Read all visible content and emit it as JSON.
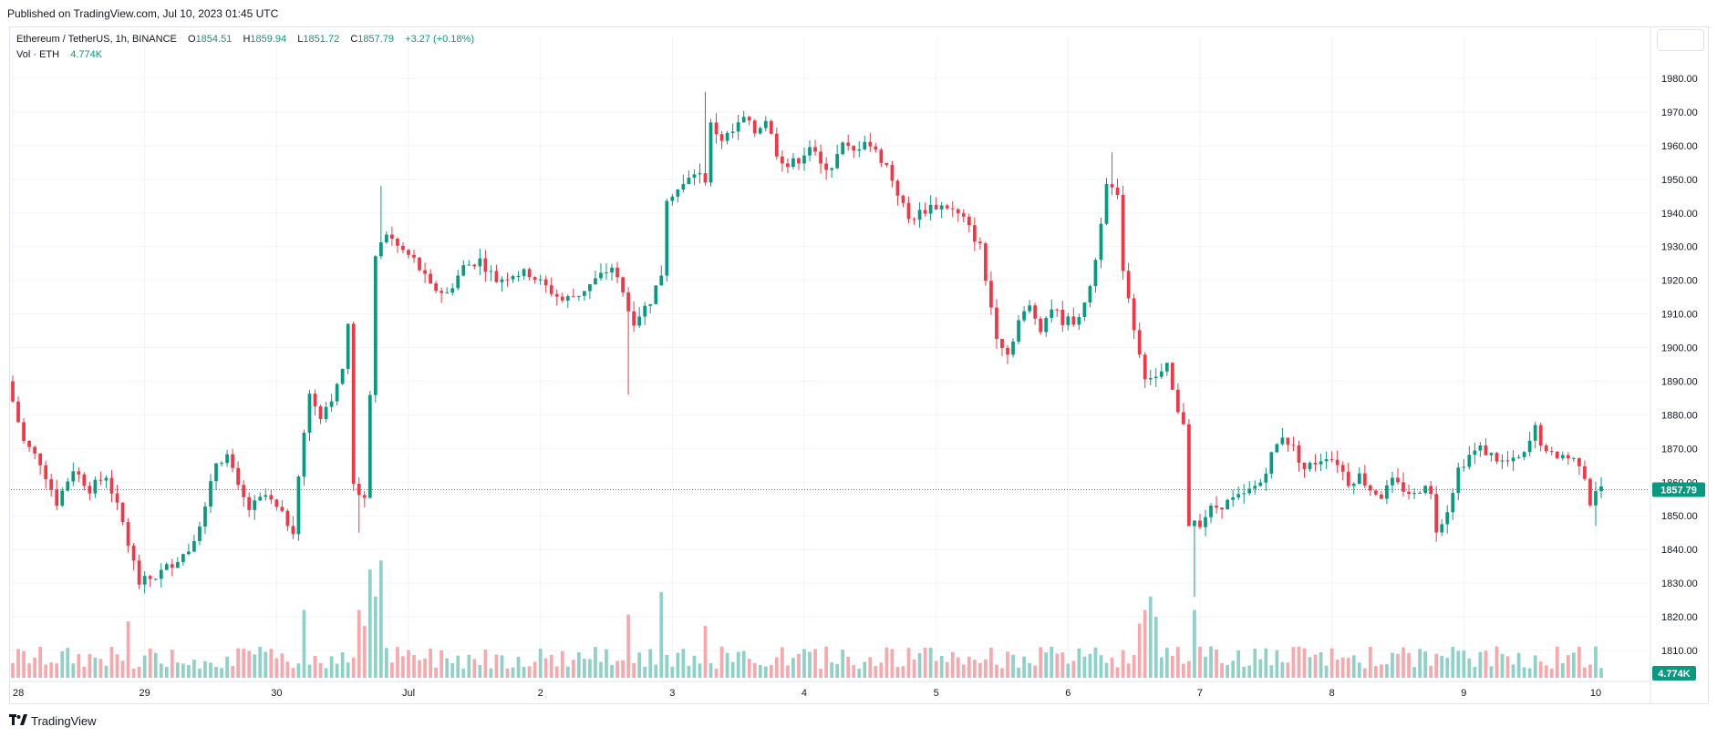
{
  "header": {
    "published": "Published on TradingView.com, Jul 10, 2023 01:45 UTC"
  },
  "legend": {
    "symbol": "Ethereum / TetherUS, 1h, BINANCE",
    "open_label": "O",
    "open": "1854.51",
    "high_label": "H",
    "high": "1859.94",
    "low_label": "L",
    "low": "1851.72",
    "close_label": "C",
    "close": "1857.79",
    "change": "+3.27 (+0.18%)",
    "volume_label": "Vol · ETH",
    "volume": "4.774K"
  },
  "price_badge": "1857.79",
  "volume_badge": "4.774K",
  "footer": {
    "brand": "TradingView",
    "logo": "tradingview-logo-icon"
  },
  "colors": {
    "up": "#089981",
    "down": "#f23645",
    "vol_up": "#8fd1c6",
    "vol_down": "#f7a8ad",
    "grid": "#f0f3fa",
    "axis_text": "#131722"
  },
  "chart_data": {
    "type": "candlestick",
    "interval": "1h",
    "ylim": [
      1810,
      1980
    ],
    "y_ticks": [
      1810,
      1820,
      1830,
      1840,
      1850,
      1860,
      1870,
      1880,
      1890,
      1900,
      1910,
      1920,
      1930,
      1940,
      1950,
      1960,
      1970,
      1980
    ],
    "y_tick_labels": [
      "1810.00",
      "1820.00",
      "1830.00",
      "1840.00",
      "1850.00",
      "1860.00",
      "1870.00",
      "1880.00",
      "1890.00",
      "1900.00",
      "1910.00",
      "1920.00",
      "1930.00",
      "1940.00",
      "1950.00",
      "1960.00",
      "1970.00",
      "1980.00"
    ],
    "x_tick_labels": [
      {
        "label": "28",
        "hour": 0
      },
      {
        "label": "29",
        "hour": 24
      },
      {
        "label": "30",
        "hour": 48
      },
      {
        "label": "Jul",
        "hour": 72
      },
      {
        "label": "2",
        "hour": 96
      },
      {
        "label": "3",
        "hour": 120
      },
      {
        "label": "4",
        "hour": 144
      },
      {
        "label": "5",
        "hour": 168
      },
      {
        "label": "6",
        "hour": 192
      },
      {
        "label": "7",
        "hour": 216
      },
      {
        "label": "8",
        "hour": 240
      },
      {
        "label": "9",
        "hour": 264
      },
      {
        "label": "10",
        "hour": 288
      }
    ],
    "last_price": 1857.79,
    "price_path": [
      [
        0,
        1890
      ],
      [
        3,
        1872
      ],
      [
        6,
        1866
      ],
      [
        9,
        1854
      ],
      [
        12,
        1864
      ],
      [
        15,
        1858
      ],
      [
        18,
        1862
      ],
      [
        21,
        1848
      ],
      [
        22,
        1842
      ],
      [
        24,
        1830
      ],
      [
        27,
        1832
      ],
      [
        30,
        1836
      ],
      [
        33,
        1840
      ],
      [
        36,
        1852
      ],
      [
        38,
        1866
      ],
      [
        40,
        1868
      ],
      [
        42,
        1858
      ],
      [
        44,
        1852
      ],
      [
        47,
        1856
      ],
      [
        50,
        1850
      ],
      [
        52,
        1846
      ],
      [
        53,
        1862
      ],
      [
        55,
        1886
      ],
      [
        57,
        1880
      ],
      [
        60,
        1888
      ],
      [
        61,
        1894
      ],
      [
        62,
        1906
      ],
      [
        63,
        1860
      ],
      [
        65,
        1854
      ],
      [
        66,
        1885
      ],
      [
        67,
        1928
      ],
      [
        69,
        1934
      ],
      [
        71,
        1930
      ],
      [
        74,
        1926
      ],
      [
        77,
        1918
      ],
      [
        80,
        1916
      ],
      [
        83,
        1924
      ],
      [
        86,
        1926
      ],
      [
        89,
        1920
      ],
      [
        92,
        1922
      ],
      [
        95,
        1922
      ],
      [
        98,
        1918
      ],
      [
        101,
        1914
      ],
      [
        104,
        1916
      ],
      [
        107,
        1920
      ],
      [
        110,
        1924
      ],
      [
        112,
        1916
      ],
      [
        114,
        1908
      ],
      [
        117,
        1914
      ],
      [
        119,
        1922
      ],
      [
        120,
        1945
      ],
      [
        123,
        1948
      ],
      [
        125,
        1952
      ],
      [
        127,
        1950
      ],
      [
        128,
        1966
      ],
      [
        130,
        1962
      ],
      [
        132,
        1964
      ],
      [
        134,
        1968
      ],
      [
        136,
        1964
      ],
      [
        138,
        1968
      ],
      [
        140,
        1958
      ],
      [
        142,
        1954
      ],
      [
        144,
        1956
      ],
      [
        146,
        1960
      ],
      [
        148,
        1954
      ],
      [
        150,
        1954
      ],
      [
        152,
        1960
      ],
      [
        154,
        1958
      ],
      [
        156,
        1962
      ],
      [
        158,
        1958
      ],
      [
        160,
        1954
      ],
      [
        162,
        1946
      ],
      [
        164,
        1938
      ],
      [
        166,
        1940
      ],
      [
        168,
        1942
      ],
      [
        171,
        1942
      ],
      [
        174,
        1938
      ],
      [
        177,
        1930
      ],
      [
        178,
        1920
      ],
      [
        180,
        1904
      ],
      [
        182,
        1898
      ],
      [
        184,
        1908
      ],
      [
        186,
        1912
      ],
      [
        188,
        1906
      ],
      [
        190,
        1912
      ],
      [
        192,
        1908
      ],
      [
        194,
        1908
      ],
      [
        196,
        1912
      ],
      [
        198,
        1926
      ],
      [
        200,
        1950
      ],
      [
        202,
        1944
      ],
      [
        203,
        1924
      ],
      [
        205,
        1906
      ],
      [
        207,
        1892
      ],
      [
        209,
        1890
      ],
      [
        211,
        1894
      ],
      [
        213,
        1880
      ],
      [
        214,
        1878
      ],
      [
        215,
        1848
      ],
      [
        217,
        1848
      ],
      [
        219,
        1852
      ],
      [
        222,
        1854
      ],
      [
        225,
        1856
      ],
      [
        228,
        1860
      ],
      [
        230,
        1868
      ],
      [
        232,
        1874
      ],
      [
        234,
        1870
      ],
      [
        236,
        1864
      ],
      [
        238,
        1866
      ],
      [
        240,
        1868
      ],
      [
        242,
        1866
      ],
      [
        244,
        1860
      ],
      [
        246,
        1862
      ],
      [
        248,
        1858
      ],
      [
        250,
        1856
      ],
      [
        252,
        1860
      ],
      [
        254,
        1858
      ],
      [
        256,
        1856
      ],
      [
        258,
        1860
      ],
      [
        259,
        1856
      ],
      [
        260,
        1846
      ],
      [
        262,
        1852
      ],
      [
        264,
        1864
      ],
      [
        266,
        1868
      ],
      [
        268,
        1870
      ],
      [
        270,
        1868
      ],
      [
        272,
        1866
      ],
      [
        274,
        1866
      ],
      [
        276,
        1868
      ],
      [
        278,
        1876
      ],
      [
        280,
        1868
      ],
      [
        283,
        1868
      ],
      [
        286,
        1866
      ],
      [
        287,
        1862
      ],
      [
        288,
        1854
      ],
      [
        289,
        1858
      ]
    ],
    "spikes": [
      {
        "hour": 112,
        "low": 1886
      },
      {
        "hour": 215,
        "low": 1826
      },
      {
        "hour": 63,
        "low": 1845
      },
      {
        "hour": 67,
        "high": 1948
      },
      {
        "hour": 200,
        "high": 1958
      },
      {
        "hour": 288,
        "low": 1847
      },
      {
        "hour": 126,
        "high": 1976
      }
    ],
    "volume_spikes": [
      {
        "hour": 63,
        "value": 3.0
      },
      {
        "hour": 64,
        "value": 2.3
      },
      {
        "hour": 65,
        "value": 4.8
      },
      {
        "hour": 66,
        "value": 3.6
      },
      {
        "hour": 67,
        "value": 5.2
      },
      {
        "hour": 118,
        "value": 3.8
      },
      {
        "hour": 112,
        "value": 2.8
      },
      {
        "hour": 205,
        "value": 2.4
      },
      {
        "hour": 206,
        "value": 3.0
      },
      {
        "hour": 207,
        "value": 3.6
      },
      {
        "hour": 208,
        "value": 2.7
      },
      {
        "hour": 215,
        "value": 3.0
      },
      {
        "hour": 21,
        "value": 2.5
      },
      {
        "hour": 53,
        "value": 3.0
      },
      {
        "hour": 126,
        "value": 2.3
      }
    ],
    "volume_base": 1.0
  }
}
